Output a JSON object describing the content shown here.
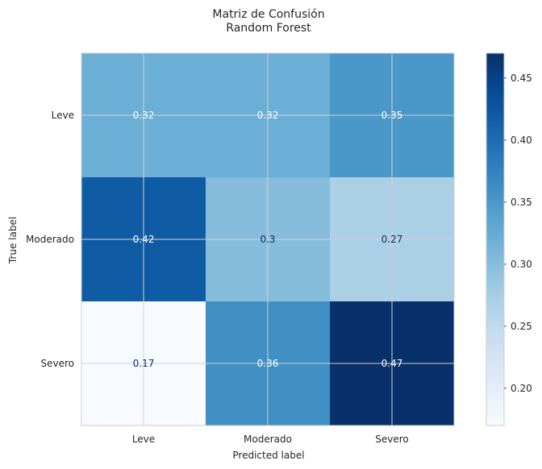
{
  "chart_data": {
    "type": "heatmap",
    "title": "Matriz de Confusión",
    "subtitle": "Random Forest",
    "xlabel": "Predicted label",
    "ylabel": "True label",
    "x_categories": [
      "Leve",
      "Moderado",
      "Severo"
    ],
    "y_categories": [
      "Leve",
      "Moderado",
      "Severo"
    ],
    "values": [
      [
        0.32,
        0.32,
        0.35
      ],
      [
        0.42,
        0.3,
        0.27
      ],
      [
        0.17,
        0.36,
        0.47
      ]
    ],
    "value_labels": [
      [
        "0.32",
        "0.32",
        "0.35"
      ],
      [
        "0.42",
        "0.3",
        "0.27"
      ],
      [
        "0.17",
        "0.36",
        "0.47"
      ]
    ],
    "colormap": "Blues",
    "color_range": [
      0.17,
      0.47
    ],
    "colorbar": {
      "ticks": [
        0.2,
        0.25,
        0.3,
        0.35,
        0.4,
        0.45
      ],
      "tick_labels": [
        "0.20",
        "0.25",
        "0.30",
        "0.35",
        "0.40",
        "0.45"
      ]
    },
    "grid": true,
    "colors": {
      "text_light": "#ffffff",
      "text_dark": "#08306b",
      "axis_text": "#262626",
      "grid": "#d0d0d0",
      "spine": "#cccccc"
    }
  }
}
